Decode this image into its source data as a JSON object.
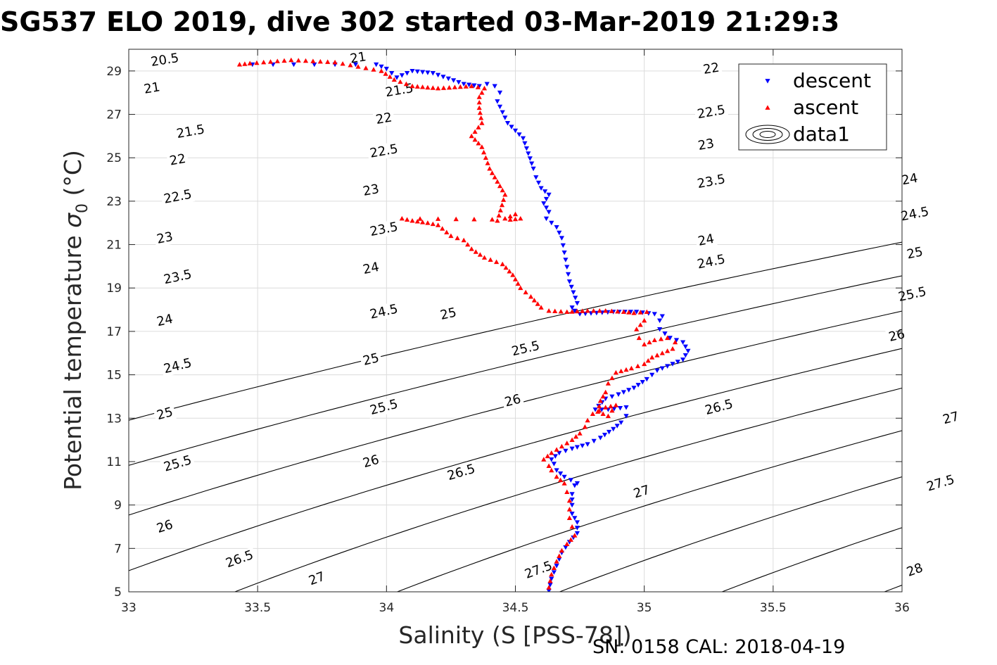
{
  "title": "SG537 ELO 2019, dive 302 started 03-Mar-2019 21:29:3",
  "footer": "SN: 0158  CAL: 2018-04-19",
  "chart_data": {
    "type": "scatter",
    "xlabel": "Salinity (S [PSS-78])",
    "ylabel": "Potential temperature σ₀ (°C)",
    "ylabel_main": "Potential temperature ",
    "ylabel_sigma": "σ",
    "ylabel_sub": "0",
    "ylabel_unit": " (°C)",
    "xlim": [
      33,
      36
    ],
    "ylim": [
      5,
      30
    ],
    "xticks": [
      "33",
      "33.5",
      "34",
      "34.5",
      "35",
      "35.5",
      "36"
    ],
    "yticks": [
      "5",
      "7",
      "9",
      "11",
      "13",
      "15",
      "17",
      "19",
      "21",
      "23",
      "25",
      "27",
      "29"
    ],
    "grid": true,
    "legend": {
      "placement": "top-right",
      "entries": [
        "descent",
        "ascent",
        "data1"
      ]
    },
    "colors": {
      "descent": "#0000ff",
      "ascent": "#ff0000",
      "contour": "#000000"
    },
    "contour_levels": [
      20.5,
      21,
      21.5,
      22,
      22.5,
      23,
      23.5,
      24,
      24.5,
      25,
      25.5,
      26,
      26.5,
      27,
      27.5,
      28
    ],
    "contour_line_labels": [
      {
        "text": "20.5",
        "s": 33.14,
        "t": 29.5
      },
      {
        "text": "21",
        "s": 33.09,
        "t": 28.2
      },
      {
        "text": "21",
        "s": 33.89,
        "t": 29.6
      },
      {
        "text": "21.5",
        "s": 33.24,
        "t": 26.2
      },
      {
        "text": "21.5",
        "s": 34.05,
        "t": 28.1
      },
      {
        "text": "22",
        "s": 33.19,
        "t": 24.9
      },
      {
        "text": "22",
        "s": 33.99,
        "t": 26.8
      },
      {
        "text": "22",
        "s": 35.26,
        "t": 29.1
      },
      {
        "text": "22.5",
        "s": 33.19,
        "t": 23.2
      },
      {
        "text": "22.5",
        "s": 33.99,
        "t": 25.3
      },
      {
        "text": "22.5",
        "s": 35.26,
        "t": 27.1
      },
      {
        "text": "23",
        "s": 33.14,
        "t": 21.3
      },
      {
        "text": "23",
        "s": 33.94,
        "t": 23.5
      },
      {
        "text": "23",
        "s": 35.24,
        "t": 25.6
      },
      {
        "text": "23.5",
        "s": 33.19,
        "t": 19.5
      },
      {
        "text": "23.5",
        "s": 33.99,
        "t": 21.7
      },
      {
        "text": "23.5",
        "s": 35.26,
        "t": 23.9
      },
      {
        "text": "24",
        "s": 33.14,
        "t": 17.5
      },
      {
        "text": "24",
        "s": 33.94,
        "t": 19.9
      },
      {
        "text": "24",
        "s": 35.24,
        "t": 21.2
      },
      {
        "text": "24",
        "s": 36.03,
        "t": 24.0
      },
      {
        "text": "24.5",
        "s": 33.19,
        "t": 15.4
      },
      {
        "text": "24.5",
        "s": 33.99,
        "t": 17.9
      },
      {
        "text": "24.5",
        "s": 35.26,
        "t": 20.2
      },
      {
        "text": "24.5",
        "s": 36.05,
        "t": 22.4
      },
      {
        "text": "25",
        "s": 33.14,
        "t": 13.2
      },
      {
        "text": "25",
        "s": 33.94,
        "t": 15.7
      },
      {
        "text": "25",
        "s": 34.24,
        "t": 17.8
      },
      {
        "text": "25",
        "s": 36.05,
        "t": 20.6
      },
      {
        "text": "25.5",
        "s": 33.19,
        "t": 10.9
      },
      {
        "text": "25.5",
        "s": 33.99,
        "t": 13.5
      },
      {
        "text": "25.5",
        "s": 34.54,
        "t": 16.2
      },
      {
        "text": "25.5",
        "s": 36.04,
        "t": 18.7
      },
      {
        "text": "26",
        "s": 33.14,
        "t": 8.0
      },
      {
        "text": "26",
        "s": 33.94,
        "t": 11.0
      },
      {
        "text": "26",
        "s": 34.49,
        "t": 13.8
      },
      {
        "text": "26",
        "s": 35.98,
        "t": 16.8
      },
      {
        "text": "26.5",
        "s": 33.43,
        "t": 6.5
      },
      {
        "text": "26.5",
        "s": 34.29,
        "t": 10.5
      },
      {
        "text": "26.5",
        "s": 35.29,
        "t": 13.5
      },
      {
        "text": "27",
        "s": 33.73,
        "t": 5.6
      },
      {
        "text": "27",
        "s": 34.99,
        "t": 9.6
      },
      {
        "text": "27",
        "s": 36.19,
        "t": 13.0
      },
      {
        "text": "27.5",
        "s": 34.59,
        "t": 6.0
      },
      {
        "text": "27.5",
        "s": 36.15,
        "t": 10.0
      },
      {
        "text": "28",
        "s": 36.05,
        "t": 6.0
      }
    ],
    "series": [
      {
        "name": "descent",
        "marker": "triangle-down",
        "points": [
          [
            34.63,
            5.05
          ],
          [
            34.64,
            5.6
          ],
          [
            34.66,
            6.2
          ],
          [
            34.68,
            6.8
          ],
          [
            34.71,
            7.3
          ],
          [
            34.74,
            7.7
          ],
          [
            34.74,
            8.2
          ],
          [
            34.72,
            8.6
          ],
          [
            34.72,
            9.0
          ],
          [
            34.72,
            9.5
          ],
          [
            34.73,
            9.9
          ],
          [
            34.74,
            10.0
          ],
          [
            34.69,
            10.3
          ],
          [
            34.66,
            10.6
          ],
          [
            34.65,
            10.9
          ],
          [
            34.64,
            11.1
          ],
          [
            34.67,
            11.4
          ],
          [
            34.72,
            11.6
          ],
          [
            34.78,
            11.8
          ],
          [
            34.83,
            12.1
          ],
          [
            34.88,
            12.5
          ],
          [
            34.91,
            12.8
          ],
          [
            34.93,
            13.1
          ],
          [
            34.93,
            13.5
          ],
          [
            34.86,
            13.4
          ],
          [
            34.81,
            13.4
          ],
          [
            34.85,
            13.9
          ],
          [
            34.9,
            14.1
          ],
          [
            34.96,
            14.4
          ],
          [
            35.01,
            14.8
          ],
          [
            35.05,
            15.2
          ],
          [
            35.11,
            15.5
          ],
          [
            35.15,
            15.7
          ],
          [
            35.17,
            16.1
          ],
          [
            35.15,
            16.5
          ],
          [
            35.1,
            16.7
          ],
          [
            35.06,
            17.1
          ],
          [
            35.06,
            17.5
          ],
          [
            35.07,
            17.7
          ],
          [
            35.04,
            17.8
          ],
          [
            34.97,
            17.9
          ],
          [
            34.88,
            17.9
          ],
          [
            34.75,
            17.8
          ],
          [
            34.73,
            17.95
          ],
          [
            34.72,
            18.1
          ],
          [
            34.74,
            18.3
          ],
          [
            34.71,
            19.3
          ],
          [
            34.68,
            21.3
          ],
          [
            34.66,
            21.8
          ],
          [
            34.62,
            22.2
          ],
          [
            34.63,
            22.5
          ],
          [
            34.61,
            22.9
          ],
          [
            34.63,
            23.3
          ],
          [
            34.6,
            23.6
          ],
          [
            34.58,
            24.1
          ],
          [
            34.57,
            24.5
          ],
          [
            34.53,
            25.9
          ],
          [
            34.47,
            26.6
          ],
          [
            34.45,
            27.1
          ],
          [
            34.43,
            27.6
          ],
          [
            34.44,
            28.0
          ],
          [
            34.42,
            28.3
          ],
          [
            34.39,
            28.4
          ],
          [
            34.36,
            28.3
          ],
          [
            34.3,
            28.4
          ],
          [
            34.18,
            28.9
          ],
          [
            34.1,
            29.0
          ],
          [
            34.04,
            28.7
          ],
          [
            34.0,
            29.1
          ],
          [
            33.96,
            29.3
          ],
          [
            33.48,
            29.3
          ]
        ]
      },
      {
        "name": "ascent",
        "marker": "triangle-up",
        "points": [
          [
            34.63,
            5.2
          ],
          [
            34.64,
            5.8
          ],
          [
            34.66,
            6.4
          ],
          [
            34.68,
            6.9
          ],
          [
            34.7,
            7.2
          ],
          [
            34.73,
            7.6
          ],
          [
            34.72,
            8.0
          ],
          [
            34.71,
            8.4
          ],
          [
            34.71,
            8.8
          ],
          [
            34.71,
            9.2
          ],
          [
            34.7,
            9.6
          ],
          [
            34.69,
            10.0
          ],
          [
            34.66,
            10.3
          ],
          [
            34.64,
            10.6
          ],
          [
            34.63,
            10.8
          ],
          [
            34.61,
            11.1
          ],
          [
            34.64,
            11.4
          ],
          [
            34.68,
            11.7
          ],
          [
            34.72,
            12.0
          ],
          [
            34.75,
            12.3
          ],
          [
            34.77,
            12.6
          ],
          [
            34.78,
            12.9
          ],
          [
            34.8,
            13.2
          ],
          [
            34.85,
            13.5
          ],
          [
            34.89,
            13.6
          ],
          [
            34.86,
            13.1
          ],
          [
            34.82,
            13.3
          ],
          [
            34.83,
            13.8
          ],
          [
            34.85,
            14.2
          ],
          [
            34.86,
            14.6
          ],
          [
            34.89,
            15.1
          ],
          [
            34.95,
            15.3
          ],
          [
            35.0,
            15.5
          ],
          [
            35.03,
            15.8
          ],
          [
            35.07,
            16.0
          ],
          [
            35.11,
            16.2
          ],
          [
            35.12,
            16.5
          ],
          [
            35.09,
            16.7
          ],
          [
            35.04,
            16.6
          ],
          [
            35.0,
            16.4
          ],
          [
            34.98,
            16.7
          ],
          [
            34.97,
            17.1
          ],
          [
            35.0,
            17.5
          ],
          [
            35.01,
            17.9
          ],
          [
            34.96,
            17.85
          ],
          [
            34.92,
            17.9
          ],
          [
            34.85,
            17.95
          ],
          [
            34.78,
            17.95
          ],
          [
            34.7,
            17.9
          ],
          [
            34.63,
            17.95
          ],
          [
            34.6,
            18.1
          ],
          [
            34.56,
            18.6
          ],
          [
            34.52,
            19.0
          ],
          [
            34.49,
            19.6
          ],
          [
            34.45,
            20.1
          ],
          [
            34.38,
            20.4
          ],
          [
            34.33,
            20.8
          ],
          [
            34.3,
            21.2
          ],
          [
            34.25,
            21.4
          ],
          [
            34.2,
            21.9
          ],
          [
            34.16,
            22.0
          ],
          [
            34.1,
            22.1
          ],
          [
            34.06,
            22.2
          ],
          [
            34.48,
            22.15
          ],
          [
            34.52,
            22.2
          ],
          [
            34.5,
            22.4
          ],
          [
            34.46,
            22.2
          ],
          [
            34.43,
            22.1
          ],
          [
            34.46,
            23.3
          ],
          [
            34.4,
            24.5
          ],
          [
            34.37,
            25.5
          ],
          [
            34.33,
            26.0
          ],
          [
            34.37,
            26.6
          ],
          [
            34.36,
            27.3
          ],
          [
            34.36,
            27.8
          ],
          [
            34.38,
            28.2
          ],
          [
            34.33,
            28.3
          ],
          [
            34.2,
            28.2
          ],
          [
            34.1,
            28.3
          ],
          [
            34.03,
            28.6
          ],
          [
            33.98,
            29.0
          ],
          [
            33.8,
            29.4
          ],
          [
            33.63,
            29.5
          ],
          [
            33.47,
            29.35
          ],
          [
            33.43,
            29.3
          ]
        ]
      }
    ]
  }
}
